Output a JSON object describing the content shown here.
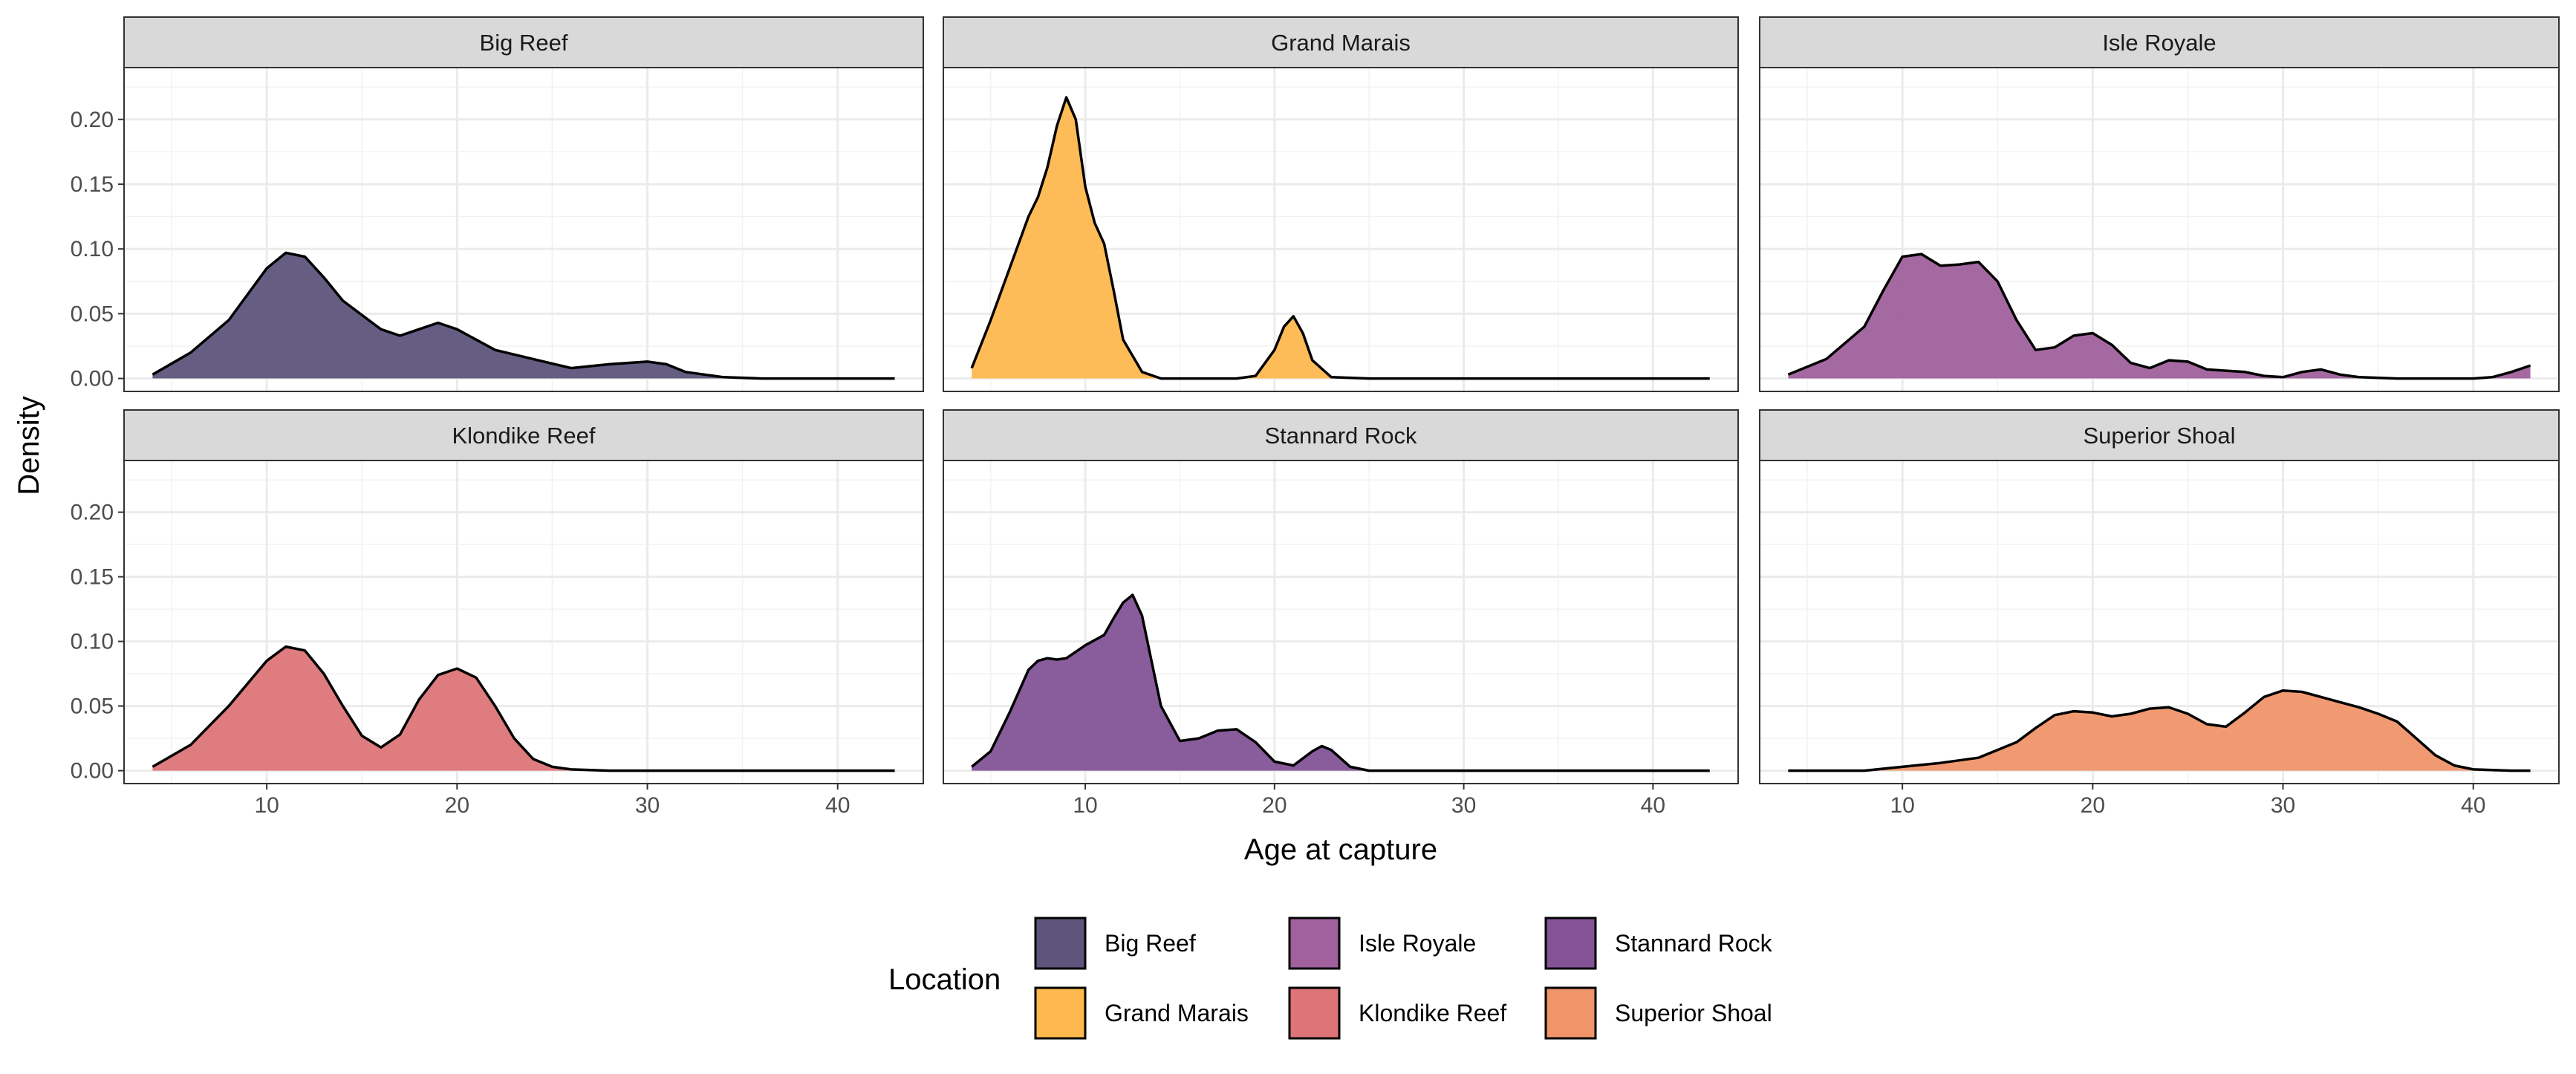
{
  "chart_data": {
    "type": "area",
    "subtype": "faceted-density",
    "xlabel": "Age at capture",
    "ylabel": "Density",
    "xlim": [
      2.5,
      44.5
    ],
    "ylim": [
      -0.01,
      0.24
    ],
    "xticks": [
      10,
      20,
      30,
      40
    ],
    "yticks": [
      0.0,
      0.05,
      0.1,
      0.15,
      0.2
    ],
    "ytick_labels": [
      "0.00",
      "0.05",
      "0.10",
      "0.15",
      "0.20"
    ],
    "grid": true,
    "facet_layout": {
      "rows": 2,
      "cols": 3
    },
    "legend": {
      "title": "Location",
      "position": "bottom",
      "entries": [
        "Big Reef",
        "Isle Royale",
        "Stannard Rock",
        "Grand Marais",
        "Klondike Reef",
        "Superior Shoal"
      ]
    },
    "panels": [
      {
        "name": "Big Reef",
        "color": "#5E547C",
        "x": [
          4,
          6,
          8,
          10,
          11,
          12,
          13,
          14,
          16,
          17,
          18,
          19,
          20,
          22,
          24,
          26,
          28,
          30,
          31,
          32,
          34,
          36,
          38,
          40,
          43
        ],
        "y": [
          0.003,
          0.02,
          0.045,
          0.085,
          0.097,
          0.094,
          0.078,
          0.06,
          0.038,
          0.033,
          0.038,
          0.043,
          0.038,
          0.022,
          0.015,
          0.008,
          0.011,
          0.013,
          0.011,
          0.005,
          0.001,
          0.0,
          0.0,
          0.0,
          0.0
        ]
      },
      {
        "name": "Grand Marais",
        "color": "#FDB84E",
        "x": [
          4,
          5,
          6,
          7,
          7.5,
          8,
          8.5,
          9,
          9.5,
          10,
          10.5,
          11,
          11.5,
          12,
          13,
          14,
          16,
          18,
          19,
          20,
          20.5,
          21,
          21.5,
          22,
          23,
          25,
          28,
          30,
          35,
          40,
          43
        ],
        "y": [
          0.008,
          0.045,
          0.085,
          0.125,
          0.14,
          0.163,
          0.195,
          0.217,
          0.2,
          0.148,
          0.12,
          0.104,
          0.068,
          0.03,
          0.005,
          0.0,
          0.0,
          0.0,
          0.002,
          0.022,
          0.04,
          0.048,
          0.035,
          0.014,
          0.001,
          0.0,
          0.0,
          0.0,
          0.0,
          0.0,
          0.0
        ]
      },
      {
        "name": "Isle Royale",
        "color": "#A0619C",
        "x": [
          4,
          6,
          8,
          9,
          10,
          11,
          12,
          13,
          14,
          15,
          16,
          17,
          18,
          19,
          20,
          21,
          22,
          23,
          24,
          25,
          26,
          27,
          28,
          29,
          30,
          31,
          32,
          33,
          34,
          36,
          38,
          40,
          41,
          42,
          43
        ],
        "y": [
          0.003,
          0.015,
          0.04,
          0.068,
          0.094,
          0.096,
          0.087,
          0.088,
          0.09,
          0.075,
          0.045,
          0.022,
          0.024,
          0.033,
          0.035,
          0.026,
          0.012,
          0.008,
          0.014,
          0.013,
          0.007,
          0.006,
          0.005,
          0.002,
          0.001,
          0.005,
          0.007,
          0.003,
          0.001,
          0.0,
          0.0,
          0.0,
          0.001,
          0.005,
          0.01
        ]
      },
      {
        "name": "Klondike Reef",
        "color": "#DD7578",
        "x": [
          4,
          6,
          8,
          10,
          11,
          12,
          13,
          14,
          15,
          16,
          17,
          18,
          19,
          20,
          21,
          22,
          23,
          24,
          25,
          26,
          28,
          30,
          35,
          40,
          43
        ],
        "y": [
          0.003,
          0.02,
          0.05,
          0.085,
          0.096,
          0.093,
          0.075,
          0.05,
          0.027,
          0.018,
          0.028,
          0.055,
          0.074,
          0.079,
          0.072,
          0.05,
          0.025,
          0.009,
          0.003,
          0.001,
          0.0,
          0.0,
          0.0,
          0.0,
          0.0
        ]
      },
      {
        "name": "Stannard Rock",
        "color": "#835396",
        "x": [
          4,
          5,
          6,
          7,
          7.5,
          8,
          8.5,
          9,
          10,
          11,
          11.5,
          12,
          12.5,
          13,
          13.5,
          14,
          15,
          16,
          17,
          18,
          19,
          20,
          21,
          22,
          22.5,
          23,
          24,
          25,
          28,
          30,
          35,
          40,
          43
        ],
        "y": [
          0.003,
          0.015,
          0.045,
          0.078,
          0.085,
          0.087,
          0.086,
          0.087,
          0.097,
          0.105,
          0.118,
          0.13,
          0.136,
          0.12,
          0.085,
          0.05,
          0.023,
          0.025,
          0.031,
          0.032,
          0.022,
          0.007,
          0.004,
          0.015,
          0.019,
          0.016,
          0.003,
          0.0,
          0.0,
          0.0,
          0.0,
          0.0,
          0.0
        ]
      },
      {
        "name": "Superior Shoal",
        "color": "#F0956A",
        "x": [
          4,
          6,
          8,
          10,
          12,
          14,
          16,
          17,
          18,
          19,
          20,
          21,
          22,
          23,
          24,
          25,
          26,
          27,
          28,
          29,
          30,
          31,
          32,
          33,
          34,
          35,
          36,
          37,
          38,
          39,
          40,
          42,
          43
        ],
        "y": [
          0.0,
          0.0,
          0.0,
          0.003,
          0.006,
          0.01,
          0.022,
          0.033,
          0.043,
          0.046,
          0.045,
          0.042,
          0.044,
          0.048,
          0.049,
          0.044,
          0.036,
          0.034,
          0.045,
          0.057,
          0.062,
          0.061,
          0.057,
          0.053,
          0.049,
          0.044,
          0.038,
          0.025,
          0.012,
          0.004,
          0.001,
          0.0,
          0.0
        ]
      }
    ]
  }
}
